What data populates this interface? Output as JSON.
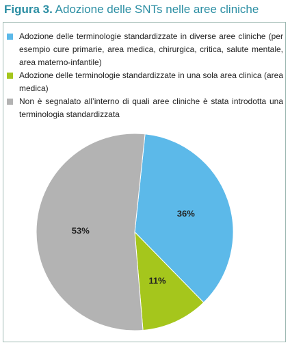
{
  "chart_data": {
    "type": "pie",
    "figure_label": "Figura 3.",
    "title": "Adozione delle SNTs nelle aree cliniche",
    "categories": [
      "Adozione delle terminologie standardizzate in diverse aree cliniche (per esempio cure primarie, area medica, chirurgica, critica, salute mentale, area materno-infantile)",
      "Adozione delle terminologie standardizzate in una sola area clinica (area medica)",
      "Non è segnalato all’interno di quali aree cliniche è stata introdotta una terminologia standardizzata"
    ],
    "values": [
      36,
      11,
      53
    ],
    "value_labels": [
      "36%",
      "11%",
      "53%"
    ],
    "colors": [
      "#5cb9e9",
      "#a5c61c",
      "#b3b3b3"
    ]
  }
}
